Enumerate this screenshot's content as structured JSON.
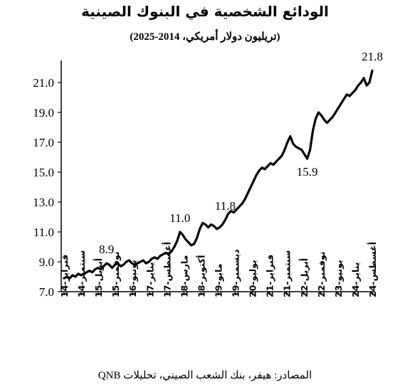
{
  "title": "الودائع الشخصية في البنوك الصينية",
  "subtitle": "(تريليون دولار أمريكي، 2014-2025)",
  "source": "المصادر: هيفر، بنك الشعب الصيني، تحليلات QNB",
  "colors": {
    "line": "#000000",
    "axis": "#000000",
    "background": "#ffffff"
  },
  "chart_data": {
    "type": "line",
    "title": "الودائع الشخصية في البنوك الصينية",
    "subtitle": "(تريليون دولار أمريكي، 2014-2025)",
    "xlabel": "",
    "ylabel": "",
    "ylim": [
      7.0,
      22.0
    ],
    "y_ticks": [
      7.0,
      9.0,
      11.0,
      13.0,
      15.0,
      17.0,
      19.0,
      21.0
    ],
    "y_tick_labels": [
      "7.0",
      "9.0",
      "11.0",
      "13.0",
      "15.0",
      "17.0",
      "19.0",
      "21.0"
    ],
    "x_tick_labels": [
      "فبراير-14",
      "سبتمبر-14",
      "أبريل-15",
      "نوفمبر-15",
      "يونيو-16",
      "يناير-17",
      "أغسطس-17",
      "مارس-18",
      "أكتوبر-18",
      "مايو-19",
      "ديسمبر-19",
      "يوليو-20",
      "فبراير-21",
      "سبتمبر-21",
      "أبريل-22",
      "نوفمبر-22",
      "يونيو-23",
      "يناير-24",
      "أغسطس-24"
    ],
    "grid": false,
    "legend": "none",
    "series": [
      {
        "values": [
          7.9,
          8.0,
          7.9,
          8.1,
          8.0,
          8.2,
          8.1,
          8.2,
          8.3,
          8.4,
          8.3,
          8.5,
          8.6,
          8.5,
          8.7,
          8.9,
          8.8,
          8.6,
          8.8,
          8.9,
          8.7,
          8.8,
          9.0,
          9.1,
          8.9,
          8.8,
          8.9,
          9.0,
          9.1,
          8.9,
          9.0,
          9.2,
          9.3,
          9.2,
          9.4,
          9.5,
          9.6,
          9.5,
          9.7,
          10.0,
          10.4,
          11.0,
          10.8,
          10.5,
          10.3,
          10.1,
          10.2,
          10.6,
          11.2,
          11.6,
          11.5,
          11.3,
          11.5,
          11.4,
          11.2,
          11.3,
          11.5,
          11.8,
          12.2,
          12.4,
          12.3,
          12.5,
          12.7,
          12.9,
          13.2,
          13.6,
          14.0,
          14.4,
          14.8,
          15.1,
          15.3,
          15.2,
          15.4,
          15.6,
          15.5,
          15.7,
          15.9,
          16.1,
          16.5,
          17.0,
          17.4,
          16.9,
          16.7,
          16.6,
          16.5,
          16.2,
          15.9,
          16.5,
          17.8,
          18.6,
          19.0,
          18.8,
          18.5,
          18.3,
          18.5,
          18.7,
          19.0,
          19.3,
          19.6,
          19.9,
          20.2,
          20.1,
          20.3,
          20.5,
          20.8,
          21.0,
          21.3,
          20.8,
          21.0,
          21.8
        ]
      }
    ],
    "annotations": [
      {
        "label": "8.9",
        "index": 15
      },
      {
        "label": "11.0",
        "index": 41
      },
      {
        "label": "11.8",
        "index": 57
      },
      {
        "label": "15.9",
        "index": 86
      },
      {
        "label": "21.8",
        "index": 109
      }
    ]
  }
}
